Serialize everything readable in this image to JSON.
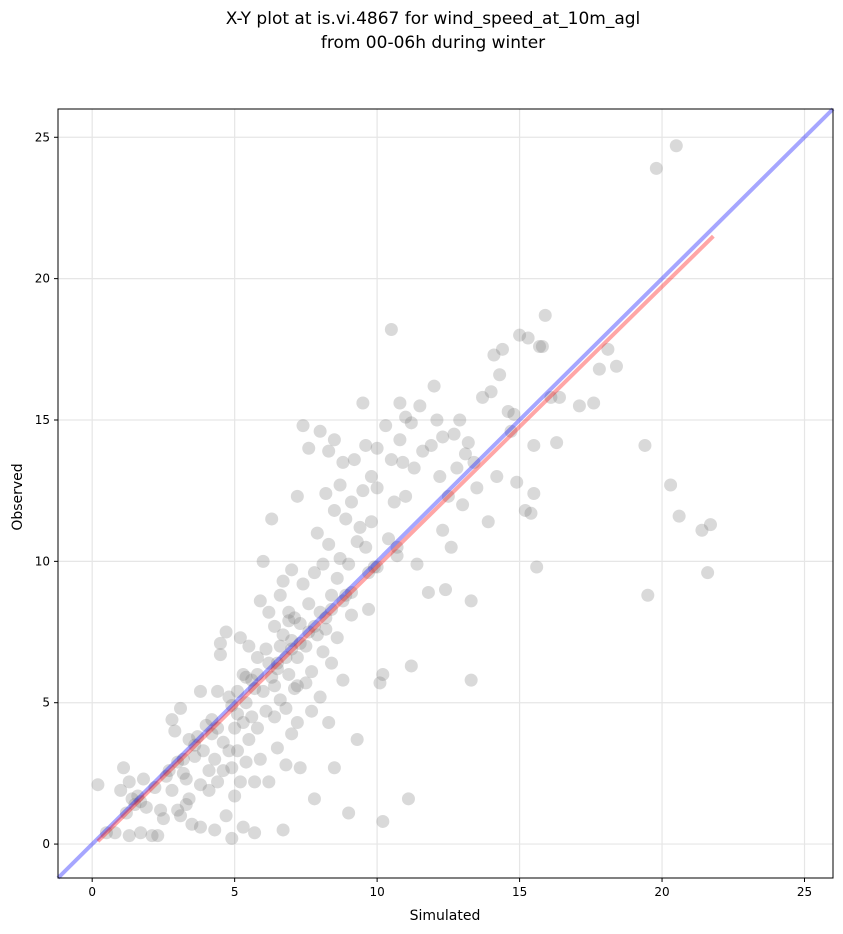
{
  "chart_data": {
    "type": "scatter",
    "title_lines": [
      "X-Y plot at is.vi.4867 for wind_speed_at_10m_agl",
      "from 00-06h during winter"
    ],
    "xlabel": "Simulated",
    "ylabel": "Observed",
    "xlim": [
      -1.2,
      26.0
    ],
    "ylim": [
      -1.2,
      26.0
    ],
    "xticks": [
      0,
      5,
      10,
      15,
      20,
      25
    ],
    "yticks": [
      0,
      5,
      10,
      15,
      20,
      25
    ],
    "grid": true,
    "colors": {
      "points": "#808080",
      "one_to_one": "#0000ff",
      "fit": "#ff0000"
    },
    "one_to_one_line": {
      "from": [
        -1.2,
        -1.2
      ],
      "to": [
        26.0,
        26.0
      ]
    },
    "fit_line": {
      "from": [
        0.2,
        0.1
      ],
      "to": [
        21.8,
        21.5
      ]
    },
    "points": [
      [
        0.2,
        2.1
      ],
      [
        0.5,
        0.4
      ],
      [
        0.8,
        0.4
      ],
      [
        1.0,
        1.9
      ],
      [
        1.1,
        2.7
      ],
      [
        1.2,
        1.1
      ],
      [
        1.3,
        2.2
      ],
      [
        1.3,
        0.3
      ],
      [
        1.4,
        1.6
      ],
      [
        1.5,
        1.4
      ],
      [
        1.6,
        1.7
      ],
      [
        1.7,
        0.4
      ],
      [
        1.8,
        2.3
      ],
      [
        1.9,
        1.3
      ],
      [
        2.1,
        0.3
      ],
      [
        2.3,
        0.3
      ],
      [
        2.4,
        1.2
      ],
      [
        2.5,
        0.9
      ],
      [
        2.7,
        2.6
      ],
      [
        2.8,
        4.4
      ],
      [
        2.8,
        1.9
      ],
      [
        2.9,
        4.0
      ],
      [
        3.0,
        2.9
      ],
      [
        3.0,
        1.2
      ],
      [
        3.1,
        4.8
      ],
      [
        3.1,
        1.0
      ],
      [
        3.2,
        2.5
      ],
      [
        3.3,
        2.3
      ],
      [
        3.3,
        1.4
      ],
      [
        3.4,
        3.7
      ],
      [
        3.4,
        1.6
      ],
      [
        3.5,
        0.7
      ],
      [
        3.6,
        3.1
      ],
      [
        3.7,
        3.8
      ],
      [
        3.8,
        0.6
      ],
      [
        3.8,
        5.4
      ],
      [
        3.8,
        2.1
      ],
      [
        3.9,
        3.3
      ],
      [
        4.0,
        4.2
      ],
      [
        4.1,
        2.6
      ],
      [
        4.1,
        1.9
      ],
      [
        4.2,
        4.4
      ],
      [
        4.3,
        0.5
      ],
      [
        4.3,
        3.0
      ],
      [
        4.4,
        5.4
      ],
      [
        4.4,
        2.2
      ],
      [
        4.5,
        7.1
      ],
      [
        4.5,
        6.7
      ],
      [
        4.6,
        3.6
      ],
      [
        4.6,
        2.6
      ],
      [
        4.7,
        1.0
      ],
      [
        4.7,
        7.5
      ],
      [
        4.8,
        5.2
      ],
      [
        4.8,
        3.3
      ],
      [
        4.9,
        2.7
      ],
      [
        4.9,
        0.2
      ],
      [
        5.0,
        4.1
      ],
      [
        5.0,
        1.7
      ],
      [
        5.1,
        5.4
      ],
      [
        5.1,
        3.3
      ],
      [
        5.2,
        2.2
      ],
      [
        5.2,
        7.3
      ],
      [
        5.3,
        6.0
      ],
      [
        5.3,
        4.3
      ],
      [
        5.3,
        0.6
      ],
      [
        5.4,
        5.0
      ],
      [
        5.4,
        2.9
      ],
      [
        5.5,
        7.0
      ],
      [
        5.5,
        3.7
      ],
      [
        5.6,
        4.5
      ],
      [
        5.6,
        5.8
      ],
      [
        5.7,
        2.2
      ],
      [
        5.7,
        0.4
      ],
      [
        5.8,
        6.6
      ],
      [
        5.8,
        4.1
      ],
      [
        5.9,
        8.6
      ],
      [
        5.9,
        3.0
      ],
      [
        6.0,
        10.0
      ],
      [
        6.0,
        5.4
      ],
      [
        6.1,
        6.9
      ],
      [
        6.1,
        4.7
      ],
      [
        6.2,
        8.2
      ],
      [
        6.2,
        2.2
      ],
      [
        6.3,
        11.5
      ],
      [
        6.3,
        5.9
      ],
      [
        6.4,
        7.7
      ],
      [
        6.4,
        4.5
      ],
      [
        6.5,
        6.4
      ],
      [
        6.5,
        3.4
      ],
      [
        6.6,
        8.8
      ],
      [
        6.6,
        5.1
      ],
      [
        6.7,
        9.3
      ],
      [
        6.7,
        7.4
      ],
      [
        6.7,
        0.5
      ],
      [
        6.8,
        4.8
      ],
      [
        6.8,
        2.8
      ],
      [
        6.9,
        8.2
      ],
      [
        6.9,
        6.0
      ],
      [
        7.0,
        7.2
      ],
      [
        7.0,
        3.9
      ],
      [
        7.0,
        9.7
      ],
      [
        7.1,
        5.5
      ],
      [
        7.1,
        8.0
      ],
      [
        7.2,
        6.6
      ],
      [
        7.2,
        4.3
      ],
      [
        7.2,
        12.3
      ],
      [
        7.3,
        7.8
      ],
      [
        7.3,
        2.7
      ],
      [
        7.4,
        14.8
      ],
      [
        7.4,
        9.2
      ],
      [
        7.5,
        5.7
      ],
      [
        7.5,
        7.0
      ],
      [
        7.6,
        8.5
      ],
      [
        7.6,
        14.0
      ],
      [
        7.7,
        6.1
      ],
      [
        7.7,
        4.7
      ],
      [
        7.8,
        9.6
      ],
      [
        7.8,
        1.6
      ],
      [
        7.9,
        7.4
      ],
      [
        7.9,
        11.0
      ],
      [
        8.0,
        8.2
      ],
      [
        8.0,
        5.2
      ],
      [
        8.0,
        14.6
      ],
      [
        8.1,
        6.8
      ],
      [
        8.1,
        9.9
      ],
      [
        8.2,
        12.4
      ],
      [
        8.2,
        7.6
      ],
      [
        8.3,
        10.6
      ],
      [
        8.3,
        4.3
      ],
      [
        8.3,
        13.9
      ],
      [
        8.4,
        8.8
      ],
      [
        8.4,
        6.4
      ],
      [
        8.5,
        11.8
      ],
      [
        8.5,
        2.7
      ],
      [
        8.5,
        14.3
      ],
      [
        8.6,
        9.4
      ],
      [
        8.6,
        7.3
      ],
      [
        8.7,
        12.7
      ],
      [
        8.7,
        10.1
      ],
      [
        8.8,
        13.5
      ],
      [
        8.8,
        8.6
      ],
      [
        8.8,
        5.8
      ],
      [
        8.9,
        11.5
      ],
      [
        9.0,
        9.9
      ],
      [
        9.0,
        1.1
      ],
      [
        9.1,
        12.1
      ],
      [
        9.1,
        8.1
      ],
      [
        9.2,
        13.6
      ],
      [
        9.3,
        10.7
      ],
      [
        9.3,
        3.7
      ],
      [
        9.4,
        11.2
      ],
      [
        9.5,
        15.6
      ],
      [
        9.5,
        12.5
      ],
      [
        9.6,
        14.1
      ],
      [
        9.6,
        10.5
      ],
      [
        9.7,
        8.3
      ],
      [
        9.8,
        13.0
      ],
      [
        9.8,
        11.4
      ],
      [
        9.9,
        9.8
      ],
      [
        10.0,
        14.0
      ],
      [
        10.0,
        12.6
      ],
      [
        10.1,
        5.7
      ],
      [
        10.2,
        6.0
      ],
      [
        10.2,
        0.8
      ],
      [
        10.3,
        14.8
      ],
      [
        10.4,
        10.8
      ],
      [
        10.5,
        18.2
      ],
      [
        10.5,
        13.6
      ],
      [
        10.6,
        12.1
      ],
      [
        10.7,
        10.2
      ],
      [
        10.8,
        15.6
      ],
      [
        10.8,
        14.3
      ],
      [
        10.9,
        13.5
      ],
      [
        11.0,
        15.1
      ],
      [
        11.0,
        12.3
      ],
      [
        11.1,
        1.6
      ],
      [
        11.2,
        6.3
      ],
      [
        11.2,
        14.9
      ],
      [
        11.3,
        13.3
      ],
      [
        11.4,
        9.9
      ],
      [
        11.5,
        15.5
      ],
      [
        11.6,
        13.9
      ],
      [
        11.8,
        8.9
      ],
      [
        11.9,
        14.1
      ],
      [
        12.0,
        16.2
      ],
      [
        12.1,
        15.0
      ],
      [
        12.2,
        13.0
      ],
      [
        12.3,
        14.4
      ],
      [
        12.3,
        11.1
      ],
      [
        12.4,
        9.0
      ],
      [
        12.5,
        12.3
      ],
      [
        12.6,
        10.5
      ],
      [
        12.7,
        14.5
      ],
      [
        12.8,
        13.3
      ],
      [
        12.9,
        15.0
      ],
      [
        13.0,
        12.0
      ],
      [
        13.1,
        13.8
      ],
      [
        13.2,
        14.2
      ],
      [
        13.3,
        5.8
      ],
      [
        13.3,
        8.6
      ],
      [
        13.4,
        13.5
      ],
      [
        13.5,
        12.6
      ],
      [
        13.7,
        15.8
      ],
      [
        13.9,
        11.4
      ],
      [
        14.0,
        16.0
      ],
      [
        14.1,
        17.3
      ],
      [
        14.2,
        13.0
      ],
      [
        14.3,
        16.6
      ],
      [
        14.4,
        17.5
      ],
      [
        14.6,
        15.3
      ],
      [
        14.7,
        14.6
      ],
      [
        14.8,
        15.2
      ],
      [
        14.9,
        12.8
      ],
      [
        15.0,
        18.0
      ],
      [
        15.2,
        11.8
      ],
      [
        15.3,
        17.9
      ],
      [
        15.4,
        11.7
      ],
      [
        15.5,
        12.4
      ],
      [
        15.5,
        14.1
      ],
      [
        15.6,
        9.8
      ],
      [
        15.7,
        17.6
      ],
      [
        15.8,
        17.6
      ],
      [
        15.9,
        18.7
      ],
      [
        16.1,
        15.8
      ],
      [
        16.3,
        14.2
      ],
      [
        16.4,
        15.8
      ],
      [
        17.1,
        15.5
      ],
      [
        17.6,
        15.6
      ],
      [
        17.8,
        16.8
      ],
      [
        18.1,
        17.5
      ],
      [
        18.4,
        16.9
      ],
      [
        19.4,
        14.1
      ],
      [
        19.5,
        8.8
      ],
      [
        19.8,
        23.9
      ],
      [
        20.3,
        12.7
      ],
      [
        20.5,
        24.7
      ],
      [
        20.6,
        11.6
      ],
      [
        21.4,
        11.1
      ],
      [
        21.6,
        9.6
      ],
      [
        21.7,
        11.3
      ],
      [
        5.4,
        5.9
      ],
      [
        6.6,
        7.0
      ],
      [
        7.0,
        6.9
      ],
      [
        7.2,
        5.6
      ],
      [
        6.9,
        7.9
      ],
      [
        6.2,
        6.4
      ],
      [
        5.8,
        6.0
      ],
      [
        4.9,
        4.9
      ],
      [
        3.6,
        3.5
      ],
      [
        4.4,
        4.1
      ],
      [
        5.1,
        4.6
      ],
      [
        6.4,
        5.6
      ],
      [
        7.8,
        7.7
      ],
      [
        8.4,
        8.3
      ],
      [
        8.9,
        8.8
      ],
      [
        9.7,
        9.6
      ],
      [
        10.7,
        10.5
      ],
      [
        3.2,
        3.0
      ],
      [
        2.6,
        2.4
      ],
      [
        2.2,
        2.0
      ],
      [
        1.7,
        1.5
      ],
      [
        6.5,
        6.2
      ],
      [
        7.3,
        7.1
      ],
      [
        8.2,
        8.0
      ],
      [
        5.7,
        5.5
      ],
      [
        4.2,
        3.9
      ],
      [
        6.8,
        6.6
      ],
      [
        7.6,
        7.5
      ],
      [
        9.1,
        8.9
      ],
      [
        10.0,
        9.8
      ]
    ]
  }
}
